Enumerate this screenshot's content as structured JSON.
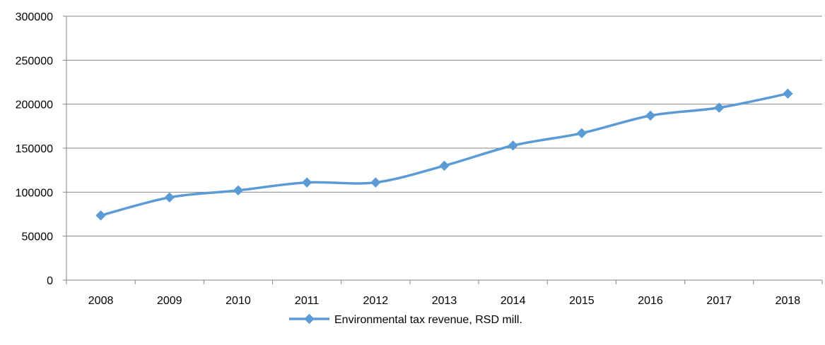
{
  "chart_data": {
    "type": "line",
    "categories": [
      "2008",
      "2009",
      "2010",
      "2011",
      "2012",
      "2013",
      "2014",
      "2015",
      "2016",
      "2017",
      "2018"
    ],
    "series": [
      {
        "name": "Environmental tax revenue, RSD mill.",
        "values": [
          73500,
          94000,
          102000,
          111000,
          111000,
          130000,
          153000,
          167000,
          187000,
          196000,
          212000
        ],
        "color": "#5B9BD5",
        "marker": "diamond",
        "smooth": true
      }
    ],
    "yticks": [
      "0",
      "50000",
      "100000",
      "150000",
      "200000",
      "250000",
      "300000"
    ],
    "ylim": [
      0,
      300000
    ],
    "title": "",
    "xlabel": "",
    "ylabel": "",
    "grid": "horizontal",
    "legend": "bottom-center"
  },
  "colors": {
    "gridline": "#868686",
    "axis": "#868686",
    "series": "#5B9BD5"
  }
}
